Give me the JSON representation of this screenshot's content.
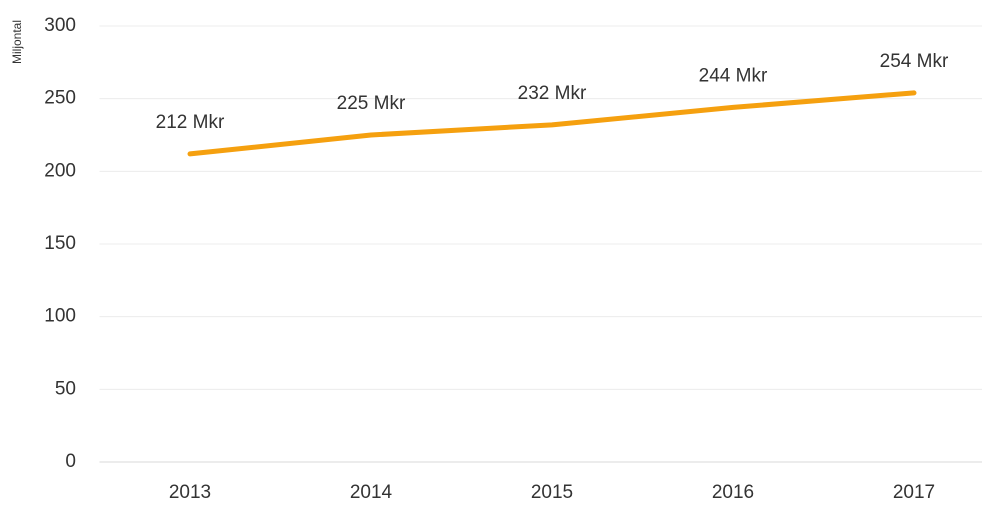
{
  "chart_data": {
    "type": "line",
    "y_axis_label": "Miljontal",
    "categories": [
      "2013",
      "2014",
      "2015",
      "2016",
      "2017"
    ],
    "series": [
      {
        "name": null,
        "color": "#f5a00f",
        "values": [
          212,
          225,
          232,
          244,
          254
        ],
        "value_labels": [
          "212 Mkr",
          "225 Mkr",
          "232 Mkr",
          "244 Mkr",
          "254 Mkr"
        ]
      }
    ],
    "ylim": [
      0,
      300
    ],
    "yticks": [
      0,
      50,
      100,
      150,
      200,
      250,
      300
    ],
    "grid": true
  }
}
